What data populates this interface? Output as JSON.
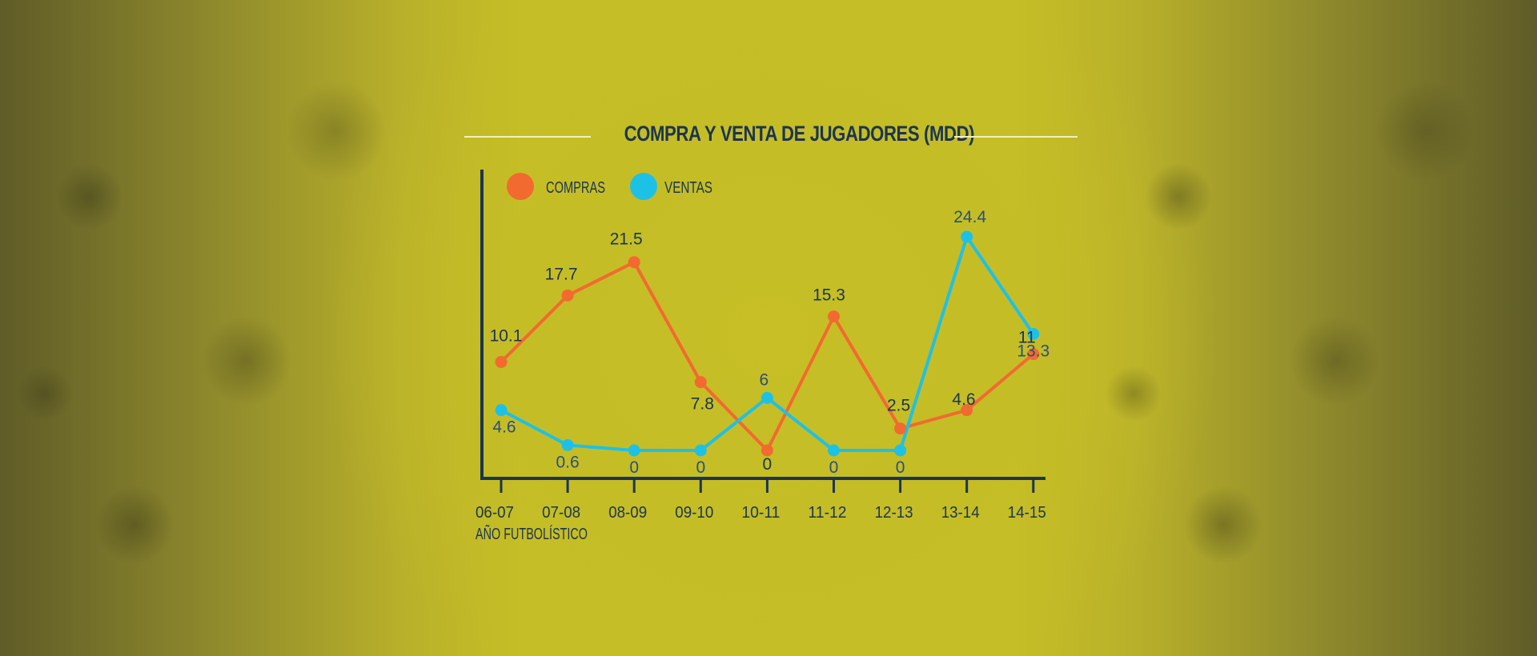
{
  "chart_data": {
    "type": "line",
    "title": "COMPRA Y VENTA DE JUGADORES (MDD)",
    "xlabel": "AÑO FUTBOLÍSTICO",
    "ylabel": "",
    "categories": [
      "06-07",
      "07-08",
      "08-09",
      "09-10",
      "10-11",
      "11-12",
      "12-13",
      "13-14",
      "14-15"
    ],
    "ylim": [
      0,
      27
    ],
    "legend_position": "top-left",
    "grid": false,
    "series": [
      {
        "name": "COMPRAS",
        "color": "#f26a30",
        "values": [
          10.1,
          17.7,
          21.5,
          7.8,
          0,
          15.3,
          2.5,
          4.6,
          11
        ],
        "labels": [
          "10.1",
          "17.7",
          "21.5",
          "7.8",
          "0",
          "15.3",
          "2.5",
          "4.6",
          "11"
        ]
      },
      {
        "name": "VENTAS",
        "color": "#1ec1e6",
        "values": [
          4.6,
          0.6,
          0,
          0,
          6,
          0,
          0,
          24.4,
          13.3
        ],
        "labels": [
          "4.6",
          "0.6",
          "0",
          "0",
          "6",
          "0",
          "0",
          "24.4",
          "13.3"
        ]
      }
    ]
  },
  "colors": {
    "axis": "#1b3550",
    "text": "#1b3550",
    "background": "#c6be26",
    "rule": "#f3efc0"
  }
}
